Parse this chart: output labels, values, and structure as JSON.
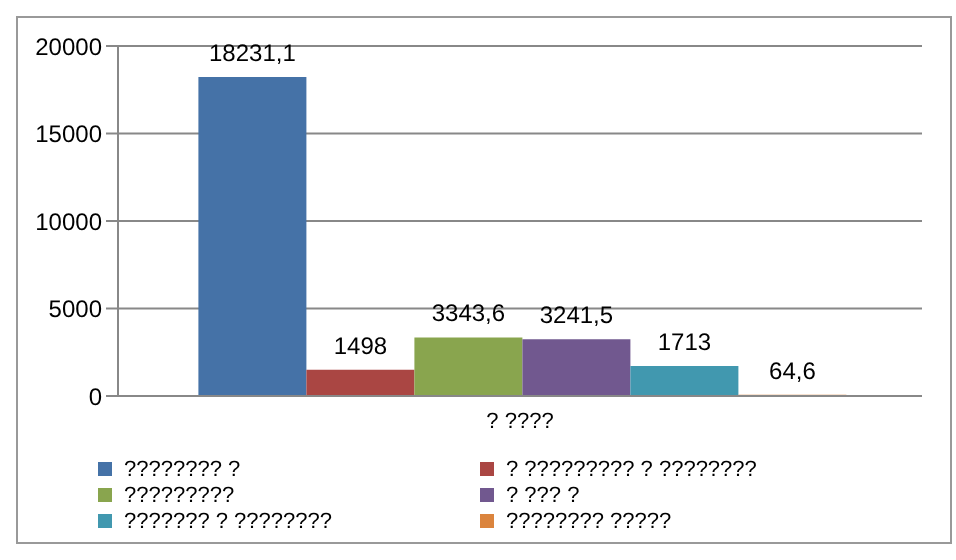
{
  "chart_data": {
    "type": "bar",
    "categories": [
      "? ????"
    ],
    "series": [
      {
        "name": "???????? ?",
        "color": "#4572a7",
        "values": [
          18231.1
        ],
        "value_labels": [
          "18231,1"
        ]
      },
      {
        "name": "? ????????? ? ????????",
        "color": "#aa4643",
        "values": [
          1498
        ],
        "value_labels": [
          "1498"
        ]
      },
      {
        "name": "?????????",
        "color": "#89a54e",
        "values": [
          3343.6
        ],
        "value_labels": [
          "3343,6"
        ]
      },
      {
        "name": "? ??? ?",
        "color": "#71588f",
        "values": [
          3241.5
        ],
        "value_labels": [
          "3241,5"
        ]
      },
      {
        "name": "??????? ? ????????",
        "color": "#4198af",
        "values": [
          1713
        ],
        "value_labels": [
          "1713"
        ]
      },
      {
        "name": "???????? ?????",
        "color": "#db843d",
        "values": [
          64.6
        ],
        "value_labels": [
          "64,6"
        ]
      }
    ],
    "ylim": [
      0,
      20000
    ],
    "yticks": [
      0,
      5000,
      10000,
      15000,
      20000
    ],
    "grid": "y",
    "legend": "bottom"
  }
}
